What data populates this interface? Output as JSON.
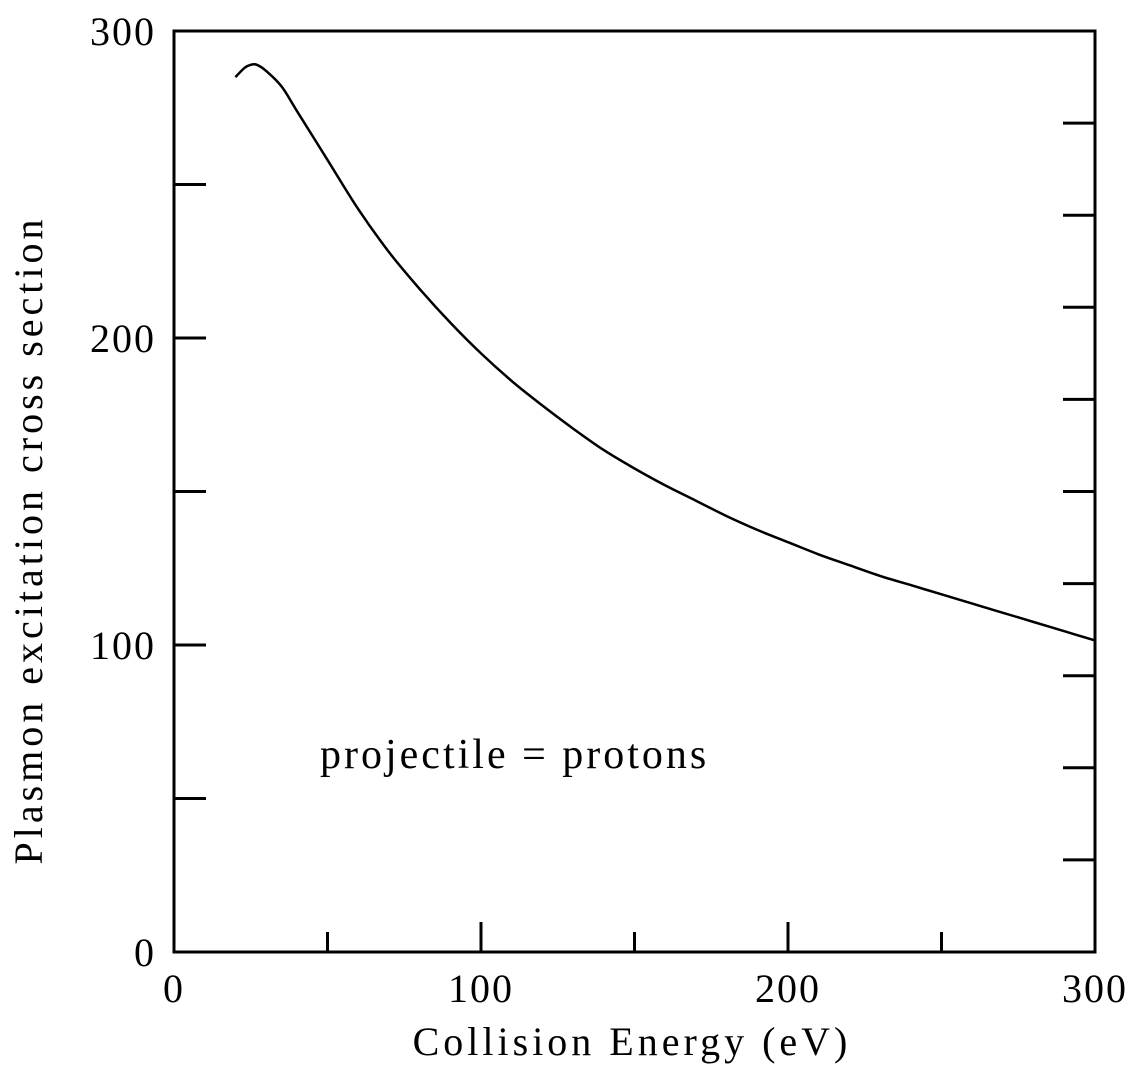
{
  "chart_data": {
    "type": "line",
    "title": "",
    "xlabel": "Collision Energy (eV)",
    "ylabel": "Plasmon excitation cross section",
    "xlim": [
      0,
      300
    ],
    "ylim": [
      0,
      300
    ],
    "x_ticks": [
      0,
      100,
      200,
      300
    ],
    "x_tick_labels": [
      "0",
      "100",
      "200",
      "300"
    ],
    "y_ticks": [
      0,
      100,
      200,
      300
    ],
    "y_tick_labels": [
      "0",
      "100",
      "200",
      "300"
    ],
    "x_minor_ticks": [
      50,
      150,
      250
    ],
    "y_minor_ticks": [
      50,
      150,
      250
    ],
    "right_axis_ticks": [
      30,
      60,
      90,
      120,
      150,
      180,
      210,
      240,
      270
    ],
    "grid": false,
    "annotation": "projectile = protons",
    "series": [
      {
        "x": [
          20,
          23,
          25,
          27,
          30,
          35,
          40,
          50,
          60,
          70,
          80,
          90,
          100,
          110,
          120,
          130,
          140,
          150,
          160,
          170,
          180,
          190,
          200,
          210,
          220,
          230,
          240,
          250,
          260,
          270,
          280,
          290,
          300
        ],
        "y": [
          285,
          288,
          289,
          289,
          287,
          282,
          274,
          258,
          242,
          228,
          216,
          205,
          195,
          186,
          178,
          170.5,
          163.5,
          157.5,
          152,
          147,
          142,
          137.5,
          133.5,
          129.5,
          126,
          122.5,
          119.5,
          116.5,
          113.5,
          110.5,
          107.5,
          104.5,
          101.5
        ]
      }
    ]
  }
}
